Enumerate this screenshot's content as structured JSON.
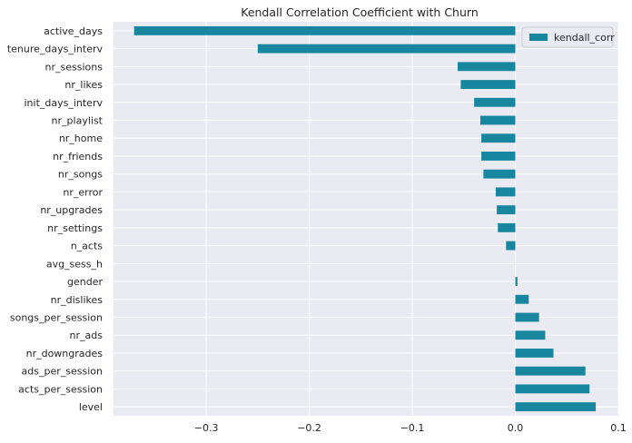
{
  "chart_data": {
    "type": "bar",
    "orientation": "horizontal",
    "title": "Kendall Correlation Coefficient with Churn",
    "xlabel": "",
    "ylabel": "",
    "categories": [
      "active_days",
      "tenure_days_interv",
      "nr_sessions",
      "nr_likes",
      "init_days_interv",
      "nr_playlist",
      "nr_home",
      "nr_friends",
      "nr_songs",
      "nr_error",
      "nr_upgrades",
      "nr_settings",
      "n_acts",
      "avg_sess_h",
      "gender",
      "nr_dislikes",
      "songs_per_session",
      "nr_ads",
      "nr_downgrades",
      "ads_per_session",
      "acts_per_session",
      "level"
    ],
    "series": [
      {
        "name": "kendall_corr",
        "color": "#17869e",
        "values": [
          -0.37,
          -0.25,
          -0.056,
          -0.053,
          -0.04,
          -0.034,
          -0.033,
          -0.033,
          -0.031,
          -0.019,
          -0.018,
          -0.017,
          -0.009,
          0.0,
          0.002,
          0.013,
          0.023,
          0.029,
          0.037,
          0.068,
          0.072,
          0.078
        ]
      }
    ],
    "xlim": [
      -0.39,
      0.1
    ],
    "xticks": [
      -0.3,
      -0.2,
      -0.1,
      0.0,
      0.1
    ],
    "xtick_labels": [
      "−0.3",
      "−0.2",
      "−0.1",
      "0.0",
      "0.1"
    ],
    "grid": true,
    "legend_position": "top-right",
    "background_color": "#eaeaf2"
  }
}
